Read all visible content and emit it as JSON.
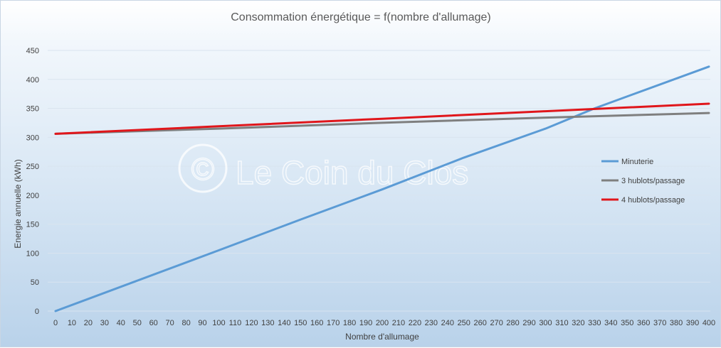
{
  "watermark": {
    "text": "Le Coin du Clos",
    "symbol": "©"
  },
  "chart_data": {
    "type": "line",
    "title": "Consommation énergétique = f(nombre d'allumage)",
    "xlabel": "Nombre d'allumage",
    "ylabel": "Energie annuelle (kWh)",
    "xlim": [
      0,
      400
    ],
    "ylim": [
      0,
      450
    ],
    "x_ticks": [
      0,
      10,
      20,
      30,
      40,
      50,
      60,
      70,
      80,
      90,
      100,
      110,
      120,
      130,
      140,
      150,
      160,
      170,
      180,
      190,
      200,
      210,
      220,
      230,
      240,
      250,
      260,
      270,
      280,
      290,
      300,
      310,
      320,
      330,
      340,
      350,
      360,
      370,
      380,
      390,
      400
    ],
    "y_ticks": [
      0,
      50,
      100,
      150,
      200,
      250,
      300,
      350,
      400,
      450
    ],
    "grid": true,
    "legend_position": "right",
    "series": [
      {
        "name": "Minuterie",
        "color": "#5b9bd5",
        "points": [
          [
            0,
            0
          ],
          [
            100,
            105
          ],
          [
            150,
            158
          ],
          [
            200,
            210
          ],
          [
            250,
            265
          ],
          [
            300,
            315
          ],
          [
            330,
            350
          ],
          [
            400,
            422
          ]
        ]
      },
      {
        "name": "3 hublots/passage",
        "color": "#7f7f7f",
        "points": [
          [
            0,
            306
          ],
          [
            100,
            315
          ],
          [
            200,
            325
          ],
          [
            300,
            334
          ],
          [
            400,
            342
          ]
        ]
      },
      {
        "name": "4 hublots/passage",
        "color": "#e0161b",
        "points": [
          [
            0,
            306
          ],
          [
            100,
            319
          ],
          [
            200,
            332
          ],
          [
            300,
            345
          ],
          [
            400,
            358
          ]
        ]
      }
    ]
  }
}
